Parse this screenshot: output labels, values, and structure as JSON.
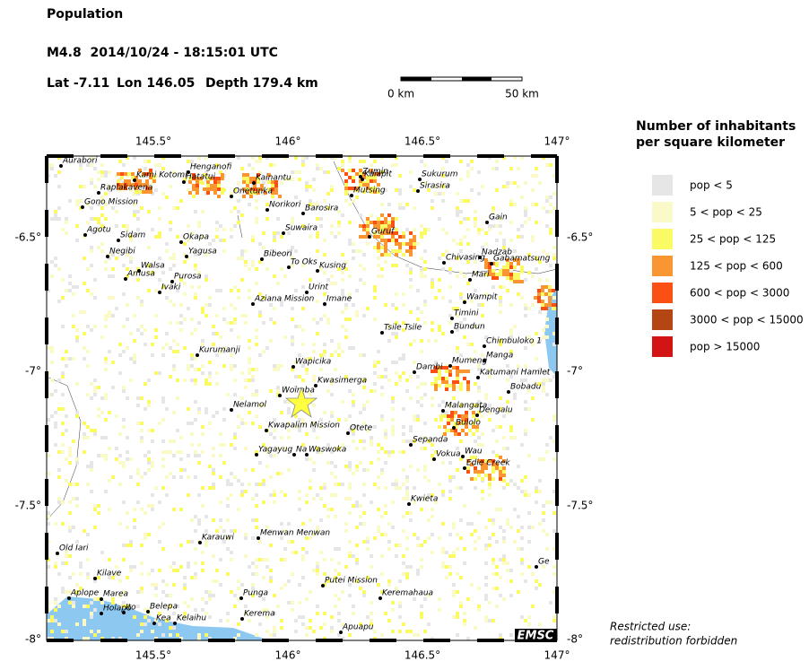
{
  "header": {
    "title": "Population",
    "event": "M4.8  2014/10/24 - 18:15:01 UTC",
    "lat": "Lat -7.11",
    "lon": "Lon 146.05",
    "depth": "Depth 179.4 km"
  },
  "scale_bar": {
    "start": "0 km",
    "end": "50 km"
  },
  "map": {
    "lon_ticks": [
      "145.5°",
      "146°",
      "146.5°",
      "147°"
    ],
    "lat_ticks": [
      "-6.5°",
      "-7°",
      "-7.5°",
      "-8°"
    ],
    "places": [
      "Aurabori",
      "Kami Kotomi",
      "Hatatui",
      "Henganofi",
      "Kainantu",
      "Raplakavena",
      "Onetunka",
      "Gono Mission",
      "Norikori",
      "Barosira",
      "Zumin",
      "Kaiapit",
      "Mutsing",
      "Sukurum",
      "Sirasira",
      "Gain",
      "Agotu",
      "Sidam",
      "Okapa",
      "Negibi",
      "Yagusa",
      "Suwaira",
      "Guruf",
      "Nadzab",
      "Chivasing",
      "Gabamatsung",
      "Bibeori",
      "To Oks",
      "Kusing",
      "Mari",
      "Walsa",
      "Amusa",
      "Purosa",
      "Ivaki",
      "Urint",
      "Aziana Mission",
      "Imane",
      "Wampit",
      "Timini",
      "Bundun",
      "Tsile Tsile",
      "Chimbuloko 1",
      "Kurumanji",
      "Manga",
      "Mumeng",
      "Dambi",
      "Wapicika",
      "Katumani Hamlet",
      "Kwasimerga",
      "Bobadu",
      "Woimba",
      "Nelamol",
      "Malangata",
      "Dengalu",
      "Bulolo",
      "Kwapalim Mission",
      "Otete",
      "Sepanda",
      "Yagayug",
      "Na",
      "Waswoka",
      "Vokua",
      "Wau",
      "Edie Creek",
      "Kwieta",
      "Karauwi",
      "Menwan Menwan",
      "Old Iari",
      "Ge",
      "Kilave",
      "Putei Mission",
      "Aplope",
      "Marea",
      "Punga",
      "Keremahaua",
      "Holapo",
      "Belepa",
      "Ito",
      "Kea",
      "Kelaihu",
      "Kerema",
      "Apuapu"
    ]
  },
  "legend": {
    "title": [
      "Number of inhabitants",
      "per square kilometer"
    ],
    "items": [
      {
        "label": "pop < 5",
        "color": "#e6e6e6"
      },
      {
        "label": "5 < pop < 25",
        "color": "#fafac8"
      },
      {
        "label": "25 < pop < 125",
        "color": "#fafa64"
      },
      {
        "label": "125 < pop < 600",
        "color": "#fa9632"
      },
      {
        "label": "600 < pop < 3000",
        "color": "#fa5014"
      },
      {
        "label": "3000 < pop < 15000",
        "color": "#b44614"
      },
      {
        "label": "pop > 15000",
        "color": "#d21414"
      }
    ]
  },
  "badge": "EMSC",
  "notice": [
    "Restricted use:",
    "redistribution forbidden"
  ]
}
